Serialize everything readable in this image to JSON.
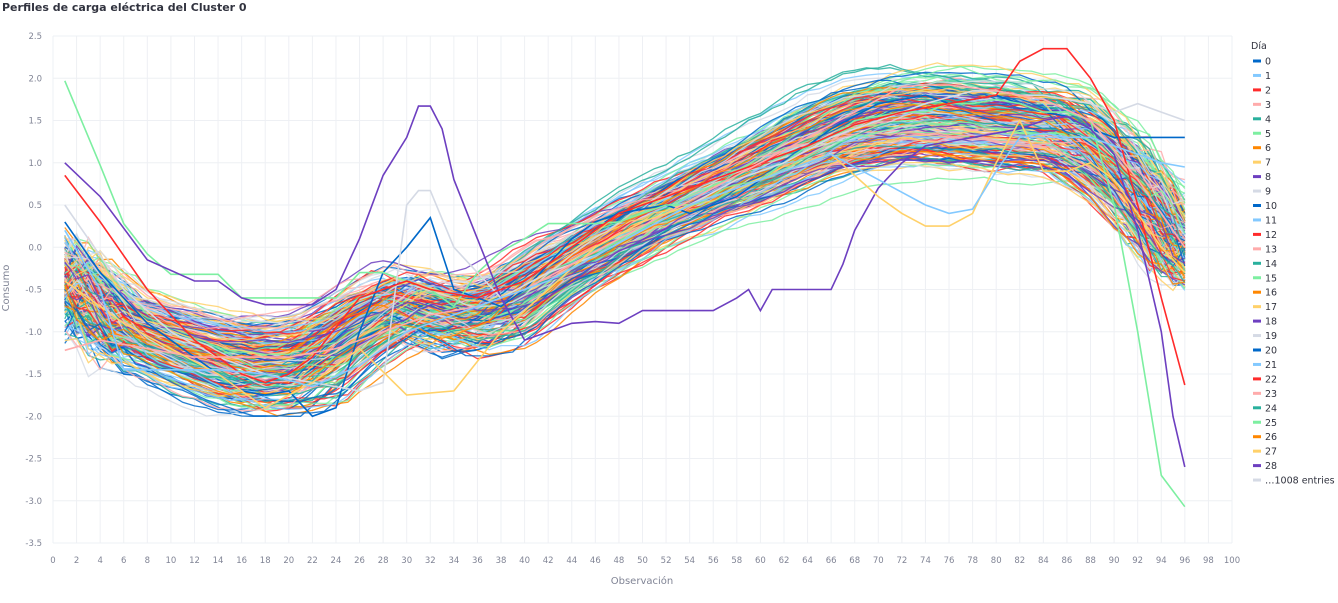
{
  "title": "Perfiles de carga eléctrica del Cluster 0",
  "chart_data": {
    "type": "line",
    "title": "Perfiles de carga eléctrica del Cluster 0",
    "xlabel": "Observación",
    "ylabel": "Consumo",
    "xlim": [
      0,
      100
    ],
    "ylim": [
      -3.5,
      2.5
    ],
    "xticks": [
      0,
      2,
      4,
      6,
      8,
      10,
      12,
      14,
      16,
      18,
      20,
      22,
      24,
      26,
      28,
      30,
      32,
      34,
      36,
      38,
      40,
      42,
      44,
      46,
      48,
      50,
      52,
      54,
      56,
      58,
      60,
      62,
      64,
      66,
      68,
      70,
      72,
      74,
      76,
      78,
      80,
      82,
      84,
      86,
      88,
      90,
      92,
      94,
      96,
      98,
      100
    ],
    "yticks": [
      -3.5,
      -3.0,
      -2.5,
      -2.0,
      -1.5,
      -1.0,
      -0.5,
      0.0,
      0.5,
      1.0,
      1.5,
      2.0,
      2.5
    ],
    "grid": true,
    "legend_title": "Día",
    "legend_position": "right",
    "legend_entries": [
      "0",
      "1",
      "2",
      "3",
      "4",
      "5",
      "6",
      "7",
      "8",
      "9",
      "10",
      "11",
      "12",
      "13",
      "14",
      "15",
      "16",
      "17",
      "18",
      "19",
      "20",
      "21",
      "22",
      "23",
      "24",
      "25",
      "26",
      "27",
      "28"
    ],
    "legend_more": "…1008 entries",
    "palette": [
      "#0068c9",
      "#83c9ff",
      "#ff2b2b",
      "#ffabab",
      "#29b09d",
      "#7defa1",
      "#ff8700",
      "#ffd16a",
      "#6d3fc0",
      "#d5dae5"
    ],
    "series_count": 1037,
    "typical_profile": {
      "x": [
        1,
        6,
        12,
        16,
        18,
        22,
        26,
        30,
        34,
        38,
        42,
        46,
        50,
        54,
        58,
        62,
        66,
        70,
        74,
        78,
        82,
        86,
        90,
        94,
        96
      ],
      "y": [
        -0.3,
        -0.9,
        -1.2,
        -1.35,
        -1.35,
        -1.3,
        -0.9,
        -0.6,
        -0.8,
        -0.7,
        -0.3,
        0.0,
        0.3,
        0.55,
        0.8,
        1.05,
        1.3,
        1.45,
        1.5,
        1.45,
        1.4,
        1.35,
        0.95,
        0.3,
        -0.1
      ]
    },
    "series": [
      {
        "name": "20",
        "x": [
          1,
          2,
          4,
          6,
          8,
          10,
          12,
          14,
          16,
          18,
          20,
          22,
          24,
          26,
          28,
          30,
          32,
          34,
          36,
          38,
          40,
          42,
          44,
          46,
          48,
          50,
          52,
          54,
          56,
          58,
          60,
          62,
          64,
          66,
          68,
          70,
          72,
          74,
          76,
          78,
          80,
          82,
          84,
          86,
          88,
          90,
          92,
          94,
          96
        ],
        "y": [
          0.3,
          0.1,
          -0.3,
          -0.6,
          -0.9,
          -1.1,
          -1.3,
          -1.5,
          -1.7,
          -1.75,
          -1.7,
          -2.0,
          -1.9,
          -1.0,
          -0.3,
          0.0,
          0.35,
          -0.5,
          -0.6,
          -0.7,
          -0.5,
          -0.2,
          0.1,
          0.3,
          0.4,
          0.45,
          0.5,
          0.4,
          0.5,
          0.6,
          0.8,
          1.0,
          1.2,
          1.4,
          1.55,
          1.7,
          1.75,
          1.8,
          1.7,
          1.75,
          1.8,
          1.7,
          1.6,
          1.55,
          1.4,
          1.3,
          1.3,
          1.3,
          1.3
        ]
      },
      {
        "name": "15",
        "x": [
          1,
          4,
          6,
          8,
          10,
          12,
          14,
          16,
          18,
          20,
          22,
          24,
          26,
          28,
          30,
          32,
          34,
          36,
          38,
          40,
          42,
          44,
          46,
          48,
          50,
          52,
          54,
          56,
          58,
          60,
          62,
          64,
          66,
          68,
          70,
          72,
          74,
          76,
          78,
          80,
          82,
          84,
          86,
          88,
          90,
          92,
          94,
          96
        ],
        "y": [
          1.97,
          0.97,
          0.28,
          -0.08,
          -0.32,
          -0.32,
          -0.32,
          -0.6,
          -0.6,
          -0.6,
          -0.6,
          -0.6,
          -0.3,
          -0.3,
          -0.4,
          -0.5,
          -0.7,
          -0.3,
          -0.05,
          0.1,
          0.28,
          0.28,
          0.28,
          0.3,
          0.4,
          0.5,
          0.5,
          0.6,
          0.7,
          0.8,
          1.0,
          1.2,
          1.3,
          1.5,
          1.55,
          1.6,
          1.6,
          1.7,
          1.7,
          1.75,
          1.7,
          1.6,
          1.6,
          1.5,
          0.5,
          -1.0,
          -2.7,
          -3.07
        ]
      },
      {
        "name": "8",
        "x": [
          1,
          4,
          8,
          12,
          14,
          16,
          18,
          20,
          22,
          24,
          26,
          28,
          30,
          31,
          32,
          33,
          34,
          36,
          38,
          40,
          42,
          44,
          46,
          48,
          50,
          52,
          54,
          56,
          58,
          59,
          60,
          61,
          62,
          64,
          66,
          67,
          68,
          70,
          72,
          74,
          76,
          78,
          80,
          82,
          84,
          86,
          88,
          90,
          92,
          94,
          95,
          96
        ],
        "y": [
          1.0,
          0.6,
          -0.15,
          -0.4,
          -0.4,
          -0.6,
          -0.68,
          -0.68,
          -0.68,
          -0.5,
          0.1,
          0.85,
          1.3,
          1.67,
          1.67,
          1.4,
          0.8,
          0.1,
          -0.6,
          -1.1,
          -1.0,
          -0.9,
          -0.88,
          -0.9,
          -0.75,
          -0.75,
          -0.75,
          -0.75,
          -0.6,
          -0.5,
          -0.75,
          -0.5,
          -0.5,
          -0.5,
          -0.5,
          -0.2,
          0.2,
          0.7,
          1.0,
          1.2,
          1.25,
          1.3,
          1.35,
          1.4,
          1.5,
          1.55,
          1.4,
          1.1,
          0.2,
          -1.0,
          -2.0,
          -2.6
        ]
      },
      {
        "name": "9",
        "x": [
          1,
          6,
          10,
          14,
          18,
          22,
          26,
          28,
          30,
          31,
          32,
          34,
          36,
          38,
          42,
          46,
          50,
          54,
          58,
          62,
          66,
          70,
          74,
          78,
          80,
          82,
          84,
          86,
          88,
          90,
          92,
          94,
          96
        ],
        "y": [
          0.5,
          -0.5,
          -1.0,
          -1.3,
          -1.5,
          -1.6,
          -1.7,
          -1.6,
          0.5,
          0.67,
          0.67,
          0.0,
          -0.3,
          -0.6,
          -0.3,
          -0.1,
          0.2,
          0.5,
          0.8,
          1.0,
          1.3,
          1.5,
          1.7,
          1.85,
          1.85,
          1.8,
          1.8,
          1.75,
          1.7,
          1.6,
          1.7,
          1.6,
          1.5
        ]
      },
      {
        "name": "2",
        "x": [
          1,
          4,
          8,
          12,
          16,
          18,
          20,
          22,
          26,
          30,
          32,
          36,
          40,
          44,
          48,
          52,
          56,
          60,
          64,
          68,
          72,
          76,
          80,
          82,
          84,
          86,
          88,
          90,
          92,
          94,
          96
        ],
        "y": [
          0.85,
          0.3,
          -0.5,
          -1.1,
          -1.5,
          -1.6,
          -1.5,
          -1.3,
          -0.6,
          -0.4,
          -0.5,
          -0.6,
          -0.4,
          0.0,
          0.4,
          0.6,
          0.8,
          1.0,
          1.2,
          1.45,
          1.6,
          1.7,
          1.8,
          2.2,
          2.35,
          2.35,
          2.0,
          1.5,
          0.5,
          -0.6,
          -1.63
        ]
      },
      {
        "name": "3",
        "x": [
          1,
          4,
          8,
          12,
          16,
          20,
          24,
          28,
          32,
          36,
          40,
          44,
          48,
          52,
          56,
          60,
          64,
          68,
          72,
          74,
          76,
          80,
          84,
          88,
          92,
          96
        ],
        "y": [
          -1.22,
          -1.1,
          -1.2,
          -1.3,
          -1.3,
          -1.3,
          -1.2,
          -1.0,
          -0.8,
          -0.7,
          -0.5,
          -0.2,
          0.1,
          0.4,
          0.7,
          1.0,
          1.3,
          1.6,
          1.9,
          1.92,
          1.92,
          1.85,
          1.75,
          1.5,
          0.8,
          0.0
        ]
      },
      {
        "name": "7",
        "x": [
          1,
          6,
          10,
          14,
          18,
          22,
          26,
          30,
          34,
          38,
          42,
          46,
          50,
          54,
          58,
          62,
          66,
          70,
          72,
          74,
          76,
          78,
          80,
          82,
          84,
          86,
          88,
          90,
          92,
          94,
          96
        ],
        "y": [
          -0.4,
          -0.9,
          -1.2,
          -1.5,
          -1.9,
          -1.6,
          -1.2,
          -1.75,
          -1.7,
          -1.0,
          -0.5,
          0.0,
          0.3,
          0.5,
          0.7,
          0.9,
          1.1,
          0.6,
          0.4,
          0.25,
          0.25,
          0.4,
          1.0,
          1.5,
          0.9,
          0.9,
          1.0,
          0.8,
          0.4,
          0.0,
          -0.3
        ]
      },
      {
        "name": "1",
        "x": [
          1,
          4,
          6,
          10,
          14,
          18,
          22,
          26,
          30,
          34,
          38,
          42,
          46,
          50,
          54,
          58,
          62,
          66,
          70,
          74,
          76,
          78,
          80,
          82,
          84,
          86,
          88,
          90,
          92,
          94,
          96
        ],
        "y": [
          0.2,
          -0.5,
          -1.45,
          -1.45,
          -1.45,
          -1.5,
          -1.65,
          -1.4,
          -1.0,
          -0.8,
          -0.6,
          -0.4,
          -0.1,
          0.2,
          0.5,
          0.7,
          0.9,
          1.1,
          0.8,
          0.5,
          0.4,
          0.45,
          0.9,
          1.3,
          1.35,
          1.3,
          1.3,
          1.2,
          1.1,
          1.0,
          0.95
        ]
      }
    ]
  }
}
